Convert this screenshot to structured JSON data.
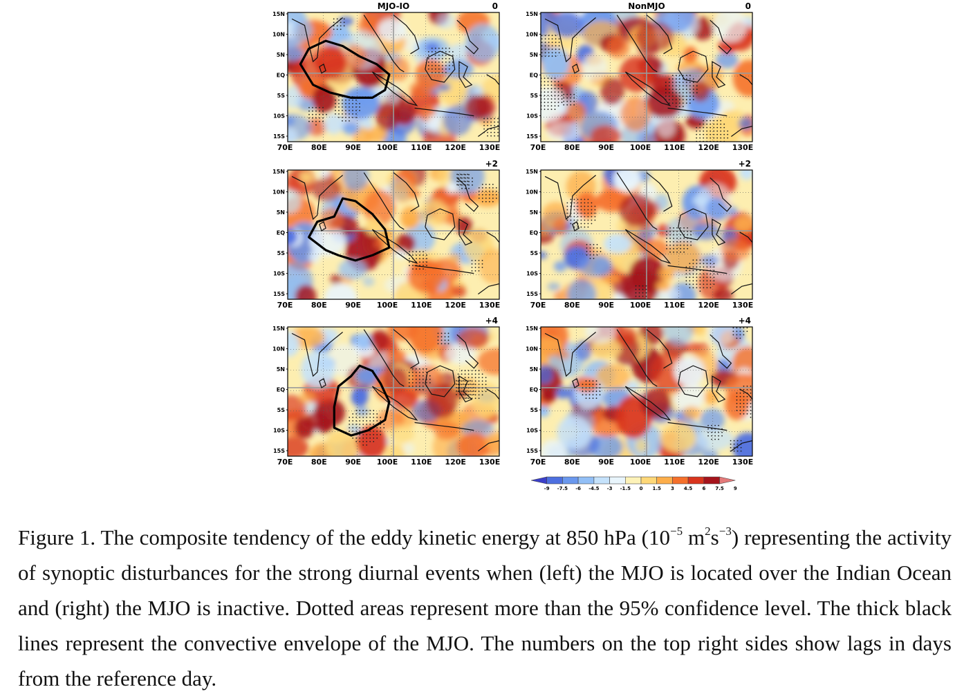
{
  "figure": {
    "columns": [
      {
        "title": "MJO-IO",
        "contour": true
      },
      {
        "title": "NonMJO",
        "contour": false
      }
    ],
    "lags": [
      "0",
      "+2",
      "+4"
    ],
    "lat_ticks": [
      "15N",
      "10N",
      "5N",
      "EQ",
      "5S",
      "10S",
      "15S"
    ],
    "lon_ticks": [
      "70E",
      "80E",
      "90E",
      "100E",
      "110E",
      "120E",
      "130E"
    ],
    "colorbar": {
      "labels": [
        "-9",
        "-7.5",
        "-6",
        "-4.5",
        "-3",
        "-1.5",
        "0",
        "1.5",
        "3",
        "4.5",
        "6",
        "7.5",
        "9"
      ],
      "colors": [
        "#3b3fc9",
        "#4d6fe0",
        "#6a98ee",
        "#92bff6",
        "#c5e2fb",
        "#e9f5fc",
        "#fdf2b8",
        "#fed878",
        "#fdae4a",
        "#f5702b",
        "#d9341d",
        "#a5131b",
        "#e47a7a"
      ]
    }
  },
  "caption": {
    "part1": "Figure 1. The composite tendency of the eddy kinetic energy at 850 hPa (10",
    "sup1": "−5",
    "part2": " m",
    "sup2": "2",
    "part3": "s",
    "sup3": "−3",
    "part4": ") representing the activity of synoptic disturbances for the strong diurnal events when (left) the MJO is located over the Indian Ocean and (right) the MJO is inactive. Dotted areas represent more than the 95% confidence level. The thick black lines represent the convective envelope of the MJO. The numbers on the top right sides show lags in days from the reference day."
  }
}
